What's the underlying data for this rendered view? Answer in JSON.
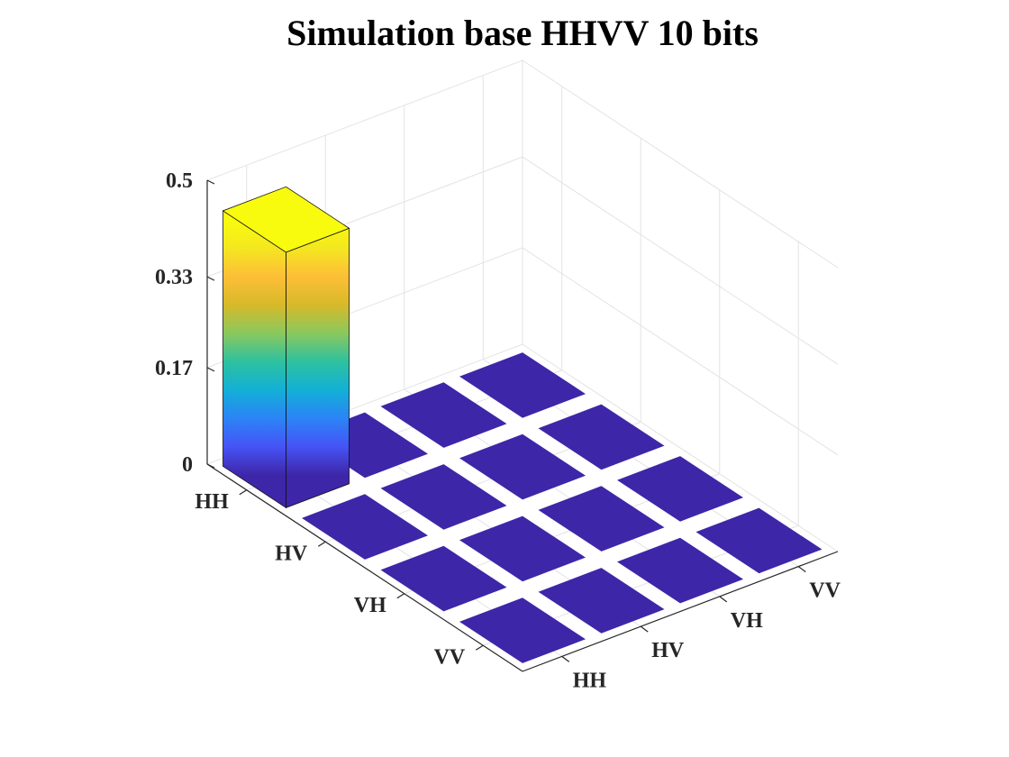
{
  "chart_data": {
    "type": "bar3",
    "title": "Simulation base HHVV 10 bits",
    "xlabel": "",
    "ylabel": "",
    "zlabel": "",
    "row_categories": [
      "HH",
      "HV",
      "VH",
      "VV"
    ],
    "col_categories": [
      "HH",
      "HV",
      "VH",
      "VV"
    ],
    "values": [
      [
        0.45,
        0,
        0,
        0
      ],
      [
        0,
        0,
        0,
        0
      ],
      [
        0,
        0,
        0,
        0
      ],
      [
        0,
        0,
        0,
        0
      ]
    ],
    "zlim": [
      0,
      0.5
    ],
    "zticks": [
      0,
      0.17,
      0.33,
      0.5
    ],
    "ztick_labels": [
      "0",
      "0.17",
      "0.33",
      "0.5"
    ],
    "grid": true,
    "colormap": "parula",
    "colormap_stops": [
      "#3e26a8",
      "#4653f6",
      "#2b84f6",
      "#12b0d6",
      "#2ec19f",
      "#8bc85d",
      "#d8b929",
      "#fdbf38",
      "#f4e71f",
      "#f9fb0e"
    ],
    "bar_values_note": ""
  }
}
